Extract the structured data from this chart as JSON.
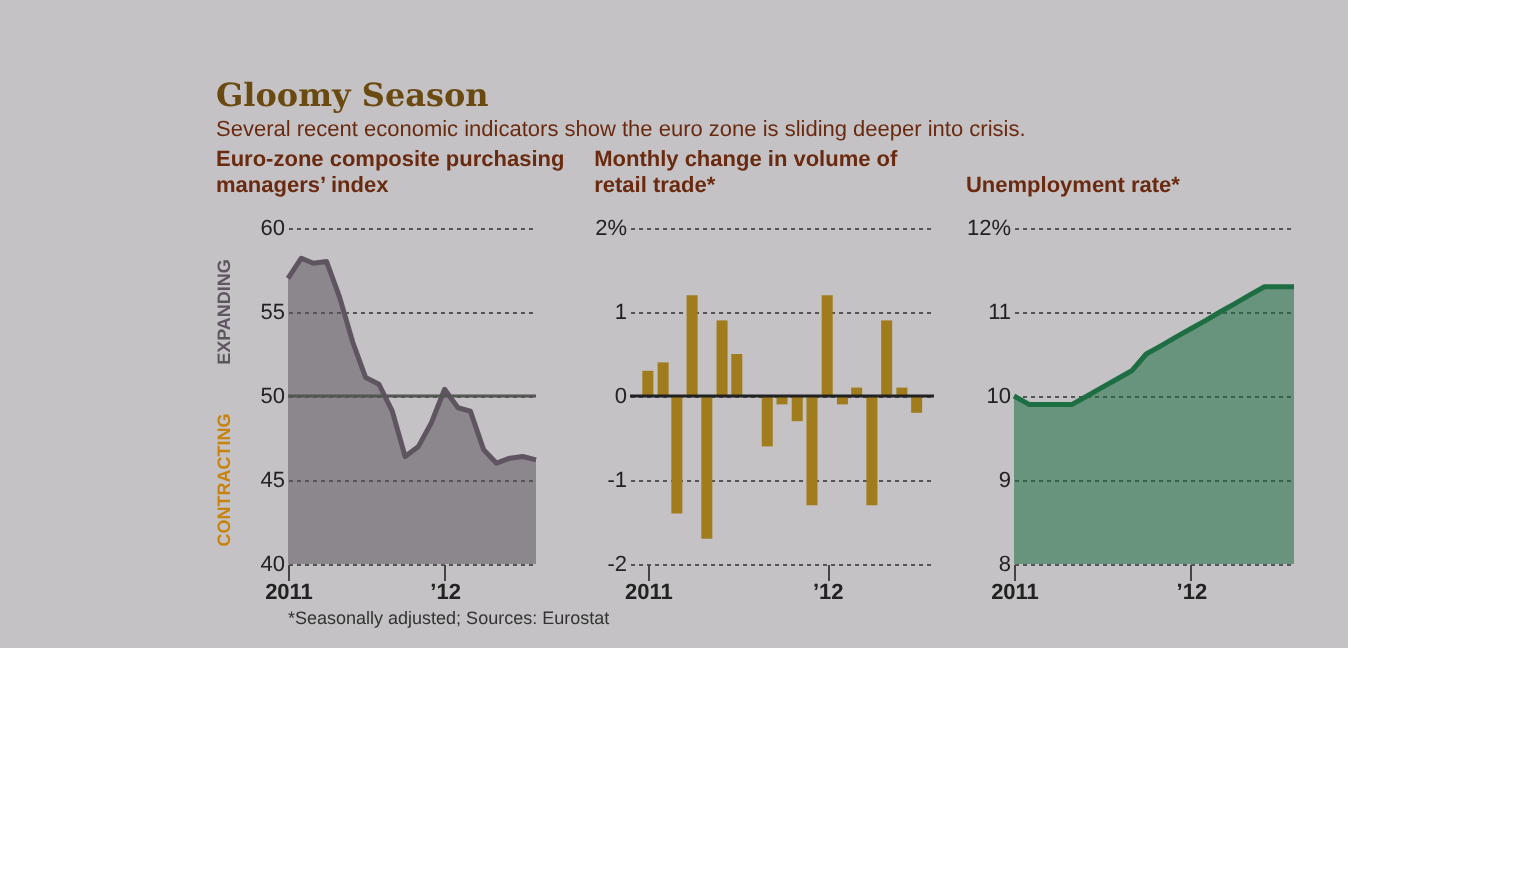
{
  "chart_data": [
    {
      "type": "other",
      "title": "Gloomy Season",
      "subtitle": "Several recent economic indicators show the euro zone is sliding deeper into crisis.",
      "annotations": [
        "*Seasonally adjusted; Sources: Eurostat"
      ]
    },
    {
      "type": "area",
      "title": "Euro-zone composite purchasing managers’ index",
      "x": [
        "2011-01",
        "2011-02",
        "2011-03",
        "2011-04",
        "2011-05",
        "2011-06",
        "2011-07",
        "2011-08",
        "2011-09",
        "2011-10",
        "2011-11",
        "2011-12",
        "2012-01",
        "2012-02",
        "2012-03",
        "2012-04",
        "2012-05",
        "2012-06",
        "2012-07",
        "2012-08"
      ],
      "series": [
        {
          "color": "#5e5560",
          "values": [
            57.0,
            58.2,
            57.9,
            58.0,
            55.9,
            53.2,
            51.1,
            50.7,
            49.1,
            46.4,
            47.0,
            48.4,
            50.4,
            49.3,
            49.1,
            46.8,
            46.0,
            46.3,
            46.4,
            46.2
          ]
        }
      ],
      "xlim": [
        "2011-01",
        "2012-08"
      ],
      "xticks": [
        {
          "value": "2011-01",
          "label": "2011"
        },
        {
          "value": "2012-01",
          "label": "’12"
        }
      ],
      "ylim": [
        40,
        60
      ],
      "yticks": [
        40,
        45,
        50,
        55,
        60
      ],
      "grid": "y",
      "ref_lines": [
        {
          "axis": "y",
          "value": 50,
          "label": null,
          "color": "#555555"
        }
      ],
      "annotations": [
        "EXPANDING",
        "CONTRACTING"
      ]
    },
    {
      "type": "bar",
      "title": "Monthly change in volume of retail trade*",
      "x": [
        "2011-01",
        "2011-02",
        "2011-03",
        "2011-04",
        "2011-05",
        "2011-06",
        "2011-07",
        "2011-08",
        "2011-09",
        "2011-10",
        "2011-11",
        "2011-12",
        "2012-01",
        "2012-02",
        "2012-03",
        "2012-04",
        "2012-05",
        "2012-06",
        "2012-07"
      ],
      "series": [
        {
          "color": "#a07c1c",
          "values": [
            0.3,
            0.4,
            -1.4,
            1.2,
            -1.7,
            0.9,
            0.5,
            0,
            -0.6,
            -0.1,
            -0.3,
            -1.3,
            1.2,
            -0.1,
            0.1,
            -1.3,
            0.9,
            0.1,
            -0.2
          ]
        }
      ],
      "xlim": [
        "2010-12-16",
        "2012-07-16"
      ],
      "xticks": [
        {
          "value": "2011-01",
          "label": "2011"
        },
        {
          "value": "2012-01",
          "label": "’12"
        }
      ],
      "ylim": [
        -2,
        2
      ],
      "yticks": [
        -2,
        -1,
        0,
        1,
        {
          "value": 2,
          "label": "2%"
        }
      ],
      "grid": "y",
      "ref_lines": [
        {
          "axis": "y",
          "value": 0,
          "label": null,
          "color": "#222222"
        }
      ]
    },
    {
      "type": "area",
      "title": "Unemployment rate*",
      "x": [
        "2011-01",
        "2011-02",
        "2011-03",
        "2011-04",
        "2011-05",
        "2011-06",
        "2011-07",
        "2011-08",
        "2011-09",
        "2011-10",
        "2011-11",
        "2011-12",
        "2012-01",
        "2012-02",
        "2012-03",
        "2012-04",
        "2012-05",
        "2012-06",
        "2012-07",
        "2012-08"
      ],
      "series": [
        {
          "color": "#1e6e44",
          "values": [
            10.0,
            9.9,
            9.9,
            9.9,
            9.9,
            10.0,
            10.1,
            10.2,
            10.3,
            10.5,
            10.6,
            10.7,
            10.8,
            10.9,
            11.0,
            11.1,
            11.2,
            11.3,
            11.3,
            11.3
          ]
        }
      ],
      "xlim": [
        "2011-01",
        "2012-08"
      ],
      "xticks": [
        {
          "value": "2011-01",
          "label": "2011"
        },
        {
          "value": "2012-01",
          "label": "’12"
        }
      ],
      "ylim": [
        8,
        12
      ],
      "yticks": [
        8,
        9,
        10,
        11,
        {
          "value": 12,
          "label": "12%"
        }
      ],
      "grid": "y"
    }
  ]
}
